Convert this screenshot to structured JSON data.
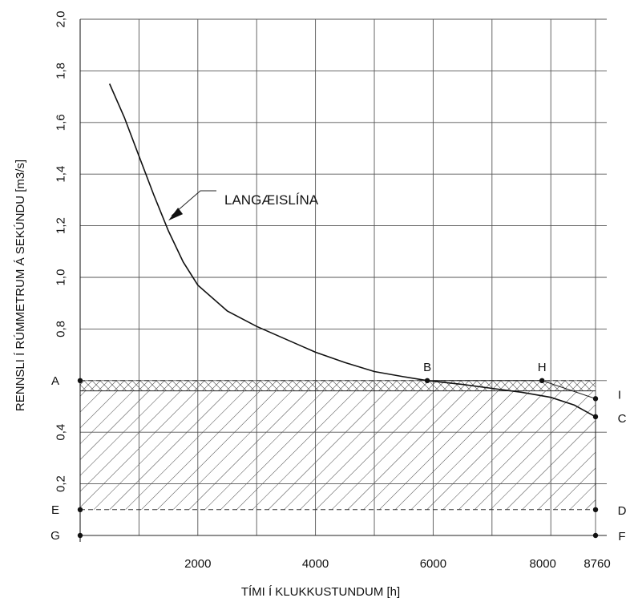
{
  "chart_data": {
    "type": "line",
    "xlabel": "TÍMI Í KLUKKUSTUNDUM  [h]",
    "ylabel": "RENNSLI Í RÚMMETRUM Á SEKÚNDU [m3/s]",
    "xlim": [
      0,
      8760
    ],
    "ylim": [
      -0.1,
      2.0
    ],
    "grid": true,
    "x_ticks": [
      {
        "value": 2000,
        "label": "2000"
      },
      {
        "value": 4000,
        "label": "4000"
      },
      {
        "value": 6000,
        "label": "6000"
      },
      {
        "value": 8000,
        "label": "8000"
      },
      {
        "value": 8760,
        "label": "8760"
      }
    ],
    "y_ticks": [
      {
        "value": 2.0,
        "label": "2,0"
      },
      {
        "value": 1.8,
        "label": "1,8"
      },
      {
        "value": 1.6,
        "label": "1,6"
      },
      {
        "value": 1.4,
        "label": "1,4"
      },
      {
        "value": 1.2,
        "label": "1,2"
      },
      {
        "value": 1.0,
        "label": "1,0"
      },
      {
        "value": 0.8,
        "label": "0,8"
      },
      {
        "value": 0.4,
        "label": "0,4"
      },
      {
        "value": 0.2,
        "label": "0,2"
      }
    ],
    "series": [
      {
        "name": "LANGÆISLÍNA",
        "x": [
          500,
          750,
          1000,
          1250,
          1500,
          1750,
          2000,
          2500,
          3000,
          3500,
          4000,
          4500,
          5000,
          5500,
          5900,
          6500,
          7000,
          7500,
          8000,
          8400,
          8760
        ],
        "y": [
          1.75,
          1.62,
          1.47,
          1.32,
          1.18,
          1.06,
          0.97,
          0.87,
          0.81,
          0.76,
          0.71,
          0.67,
          0.635,
          0.615,
          0.6,
          0.585,
          0.57,
          0.555,
          0.535,
          0.505,
          0.46
        ]
      }
    ],
    "annotations": [
      {
        "id": "A",
        "label": "A",
        "x": 0,
        "y": 0.6
      },
      {
        "id": "B",
        "label": "B",
        "x": 5900,
        "y": 0.6
      },
      {
        "id": "H",
        "label": "H",
        "x": 7850,
        "y": 0.6
      },
      {
        "id": "I",
        "label": "I",
        "x": 8760,
        "y": 0.53
      },
      {
        "id": "C",
        "label": "C",
        "x": 8760,
        "y": 0.46
      },
      {
        "id": "D",
        "label": "D",
        "x": 8760,
        "y": 0.1
      },
      {
        "id": "E",
        "label": "E",
        "x": 0,
        "y": 0.1
      },
      {
        "id": "F",
        "label": "F",
        "x": 8760,
        "y": 0.0
      },
      {
        "id": "G",
        "label": "G",
        "x": 0,
        "y": 0.0
      }
    ],
    "hatched_regions": [
      {
        "id": "main",
        "points": [
          [
            0,
            0.56
          ],
          [
            8760,
            0.56
          ],
          [
            8760,
            0.1
          ],
          [
            0,
            0.1
          ]
        ]
      },
      {
        "id": "upper",
        "points": [
          [
            0,
            0.6
          ],
          [
            5900,
            0.6
          ],
          [
            8760,
            0.6
          ],
          [
            8760,
            0.56
          ],
          [
            0,
            0.56
          ]
        ]
      }
    ],
    "curve_label": {
      "text": "LANGÆISLÍNA",
      "target_x": 1500,
      "target_y": 1.22
    }
  }
}
